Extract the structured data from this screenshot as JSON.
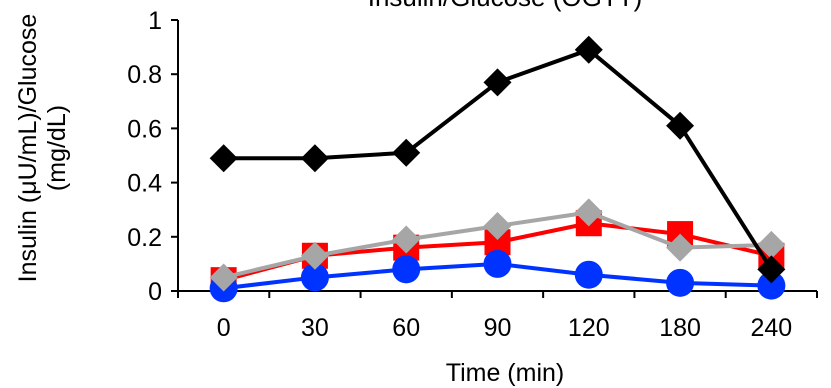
{
  "chart_data": {
    "type": "line",
    "title": "Insulin/Glucose (OGTT)",
    "xlabel": "Time (min)",
    "ylabel_line1": "Insulin (μU/mL)/Glucose",
    "ylabel_line2": "(mg/dL)",
    "categories": [
      "0",
      "30",
      "60",
      "90",
      "120",
      "180",
      "240"
    ],
    "y_ticks": [
      "0",
      "0.2",
      "0.4",
      "0.6",
      "0.8",
      "1"
    ],
    "ylim": [
      0,
      1
    ],
    "grid": false,
    "legend": "none",
    "series": [
      {
        "color": "#000000",
        "marker": "diamond",
        "values": [
          0.49,
          0.49,
          0.51,
          0.77,
          0.89,
          0.61,
          0.08
        ]
      },
      {
        "color": "#ff0000",
        "marker": "square",
        "values": [
          0.04,
          0.13,
          0.16,
          0.18,
          0.25,
          0.21,
          0.13
        ]
      },
      {
        "color": "#a6a6a6",
        "marker": "diamond",
        "values": [
          0.05,
          0.13,
          0.19,
          0.24,
          0.29,
          0.16,
          0.17
        ]
      },
      {
        "color": "#0033ff",
        "marker": "circle",
        "values": [
          0.01,
          0.05,
          0.08,
          0.1,
          0.06,
          0.03,
          0.02
        ]
      }
    ]
  }
}
